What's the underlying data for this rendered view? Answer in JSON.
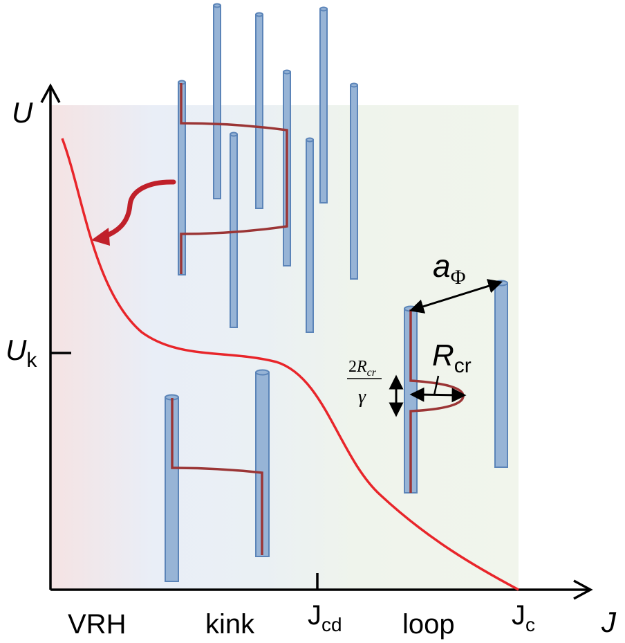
{
  "axes": {
    "y_label": "U",
    "x_label": "J",
    "uk_main": "U",
    "uk_sub": "k"
  },
  "regions": [
    {
      "label": "VRH"
    },
    {
      "label": "kink"
    },
    {
      "label": "loop"
    }
  ],
  "ticks": {
    "jcd_main": "J",
    "jcd_sub": "cd",
    "jc_main": "J",
    "jc_sub": "c"
  },
  "annotations": {
    "a_phi_main": "a",
    "a_phi_sub": "Φ",
    "r_cr_main": "R",
    "r_cr_sub": "cr",
    "frac_num_coef": "2",
    "frac_num_var": "R",
    "frac_num_sub": "cr",
    "frac_den": "γ"
  },
  "colors": {
    "curve": "#e8252a",
    "flux_line": "#9b3535",
    "cylinder_fill": "#97b4d6",
    "cylinder_stroke": "#5b84b8",
    "arrow": "#c0202a",
    "region_vrh": "#f4e4e4",
    "region_kink": "#e9eff7",
    "region_loop": "#f1f5ec"
  }
}
